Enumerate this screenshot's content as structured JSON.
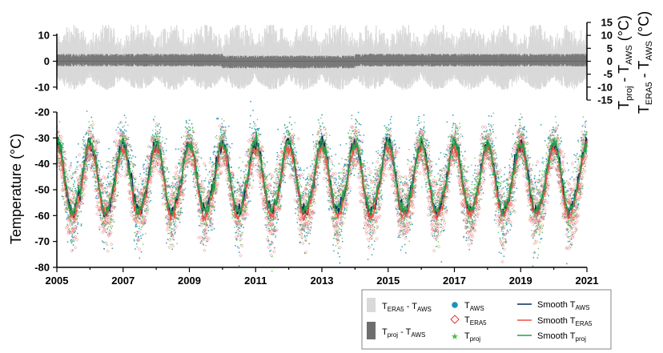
{
  "chart_data": [
    {
      "type": "area",
      "panel": "difference",
      "ylabel_right_primary": "Tproj - TAWS (°C)",
      "ylabel_right_secondary": "TERA5 - TAWS (°C)",
      "left_ticks": [
        10,
        0,
        -10
      ],
      "right_ticks": [
        15,
        10,
        5,
        0,
        -5,
        -10,
        -15
      ],
      "ylim": [
        -15,
        15
      ],
      "xlim": [
        2005,
        2021
      ],
      "series": [
        {
          "name": "TERA5 - TAWS",
          "color": "#d9d9d9",
          "approx_amplitude": 8,
          "peak_amplitude": 14
        },
        {
          "name": "Tproj - TAWS",
          "color": "#7a7a7a",
          "approx_amplitude": 2,
          "peak_amplitude": 4
        }
      ]
    },
    {
      "type": "scatter",
      "panel": "temperature",
      "ylabel": "Temperature (°C)",
      "ylim": [
        -80,
        -20
      ],
      "yticks": [
        -20,
        -30,
        -40,
        -50,
        -60,
        -70,
        -80
      ],
      "xlim": [
        2005,
        2021
      ],
      "xticks": [
        2005,
        2007,
        2009,
        2011,
        2013,
        2015,
        2017,
        2019,
        2021
      ],
      "annual_cycle": {
        "summer_max_approx": -32,
        "winter_min_approx": -62,
        "summer_peak_fraction_of_year": 0.0
      },
      "series": [
        {
          "name": "TAWS",
          "marker": "circle",
          "color": "#1e90b8"
        },
        {
          "name": "TERA5",
          "marker": "diamond",
          "color": "#f08080"
        },
        {
          "name": "Tproj",
          "marker": "star",
          "color": "#4cbb4c"
        },
        {
          "name": "Smooth TAWS",
          "line": true,
          "color": "#0b2a5c"
        },
        {
          "name": "Smooth TERA5",
          "line": true,
          "color": "#ee5040"
        },
        {
          "name": "Smooth Tproj",
          "line": true,
          "color": "#22a04a"
        }
      ]
    }
  ],
  "legend": {
    "items": [
      {
        "main": "T",
        "sub": "ERA5",
        "mid": " - T",
        "sub2": "AWS"
      },
      {
        "main": "T",
        "sub": "proj",
        "mid": " - T",
        "sub2": "AWS"
      },
      {
        "main": "T",
        "sub": "AWS"
      },
      {
        "main": "T",
        "sub": "ERA5"
      },
      {
        "main": "T",
        "sub": "proj"
      },
      {
        "main": "Smooth T",
        "sub": "AWS"
      },
      {
        "main": "Smooth T",
        "sub": "ERA5"
      },
      {
        "main": "Smooth T",
        "sub": "proj"
      }
    ]
  },
  "axis_text": {
    "ylabel": "Temperature (°C)",
    "r1_main": "T",
    "r1_sub": "proj",
    "r1_mid": " - T",
    "r1_sub2": "AWS",
    "r1_tail": " (°C)",
    "r2_main": "T",
    "r2_sub": "ERA5",
    "r2_mid": " - T",
    "r2_sub2": "AWS",
    "r2_tail": " (°C)"
  }
}
